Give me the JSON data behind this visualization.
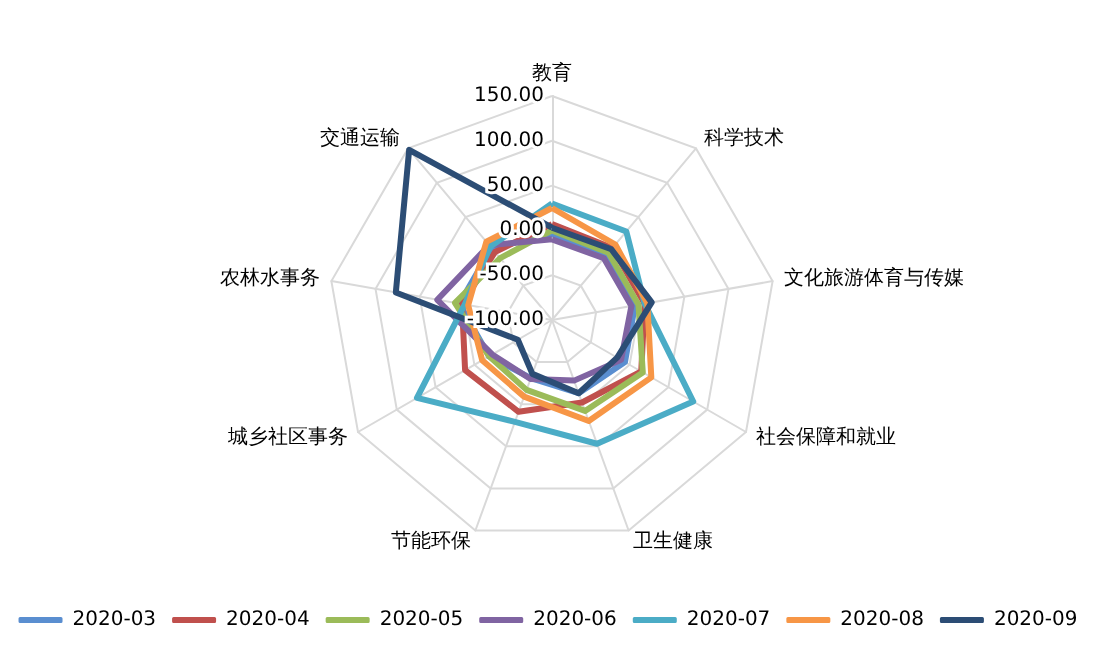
{
  "chart_data": {
    "type": "radar",
    "categories": [
      "教育",
      "科学技术",
      "文化旅游体育与传媒",
      "社会保障和就业",
      "卫生健康",
      "节能环保",
      "城乡社区事务",
      "农林水事务",
      "交通运输"
    ],
    "ylim": [
      -100,
      150
    ],
    "yticks": [
      {
        "value": -100,
        "label": "-100.00"
      },
      {
        "value": -50,
        "label": "-50.00"
      },
      {
        "value": 0,
        "label": "0.00"
      },
      {
        "value": 50,
        "label": "50.00"
      },
      {
        "value": 100,
        "label": "100.00"
      },
      {
        "value": 150,
        "label": "150.00"
      }
    ],
    "grid": true,
    "legend": "bottom",
    "marker": "none",
    "line_style": "solid",
    "series": [
      {
        "name": "2020-03",
        "color": "#5a8ed0",
        "values": [
          -4,
          -5,
          -6,
          -6,
          -13,
          -31,
          -19,
          5,
          5
        ]
      },
      {
        "name": "2020-04",
        "color": "#c0504d",
        "values": [
          7,
          5,
          5,
          15,
          -2,
          9,
          12,
          2,
          -1
        ]
      },
      {
        "name": "2020-05",
        "color": "#9bbb59",
        "values": [
          0,
          -2,
          -2,
          17,
          8,
          -17,
          -19,
          10,
          -10
        ]
      },
      {
        "name": "2020-06",
        "color": "#8064a2",
        "values": [
          -10,
          -10,
          -10,
          -11,
          -28,
          -30,
          -23,
          30,
          9
        ]
      },
      {
        "name": "2020-07",
        "color": "#4bacc6",
        "values": [
          30,
          29,
          5,
          82,
          47,
          21,
          74,
          -1,
          7
        ]
      },
      {
        "name": "2020-08",
        "color": "#f79646",
        "values": [
          25,
          10,
          8,
          28,
          20,
          -9,
          -10,
          -5,
          14
        ]
      },
      {
        "name": "2020-09",
        "color": "#2c4d75",
        "values": [
          3,
          3,
          13,
          -16,
          -13,
          -36,
          -56,
          77,
          148
        ]
      }
    ]
  }
}
